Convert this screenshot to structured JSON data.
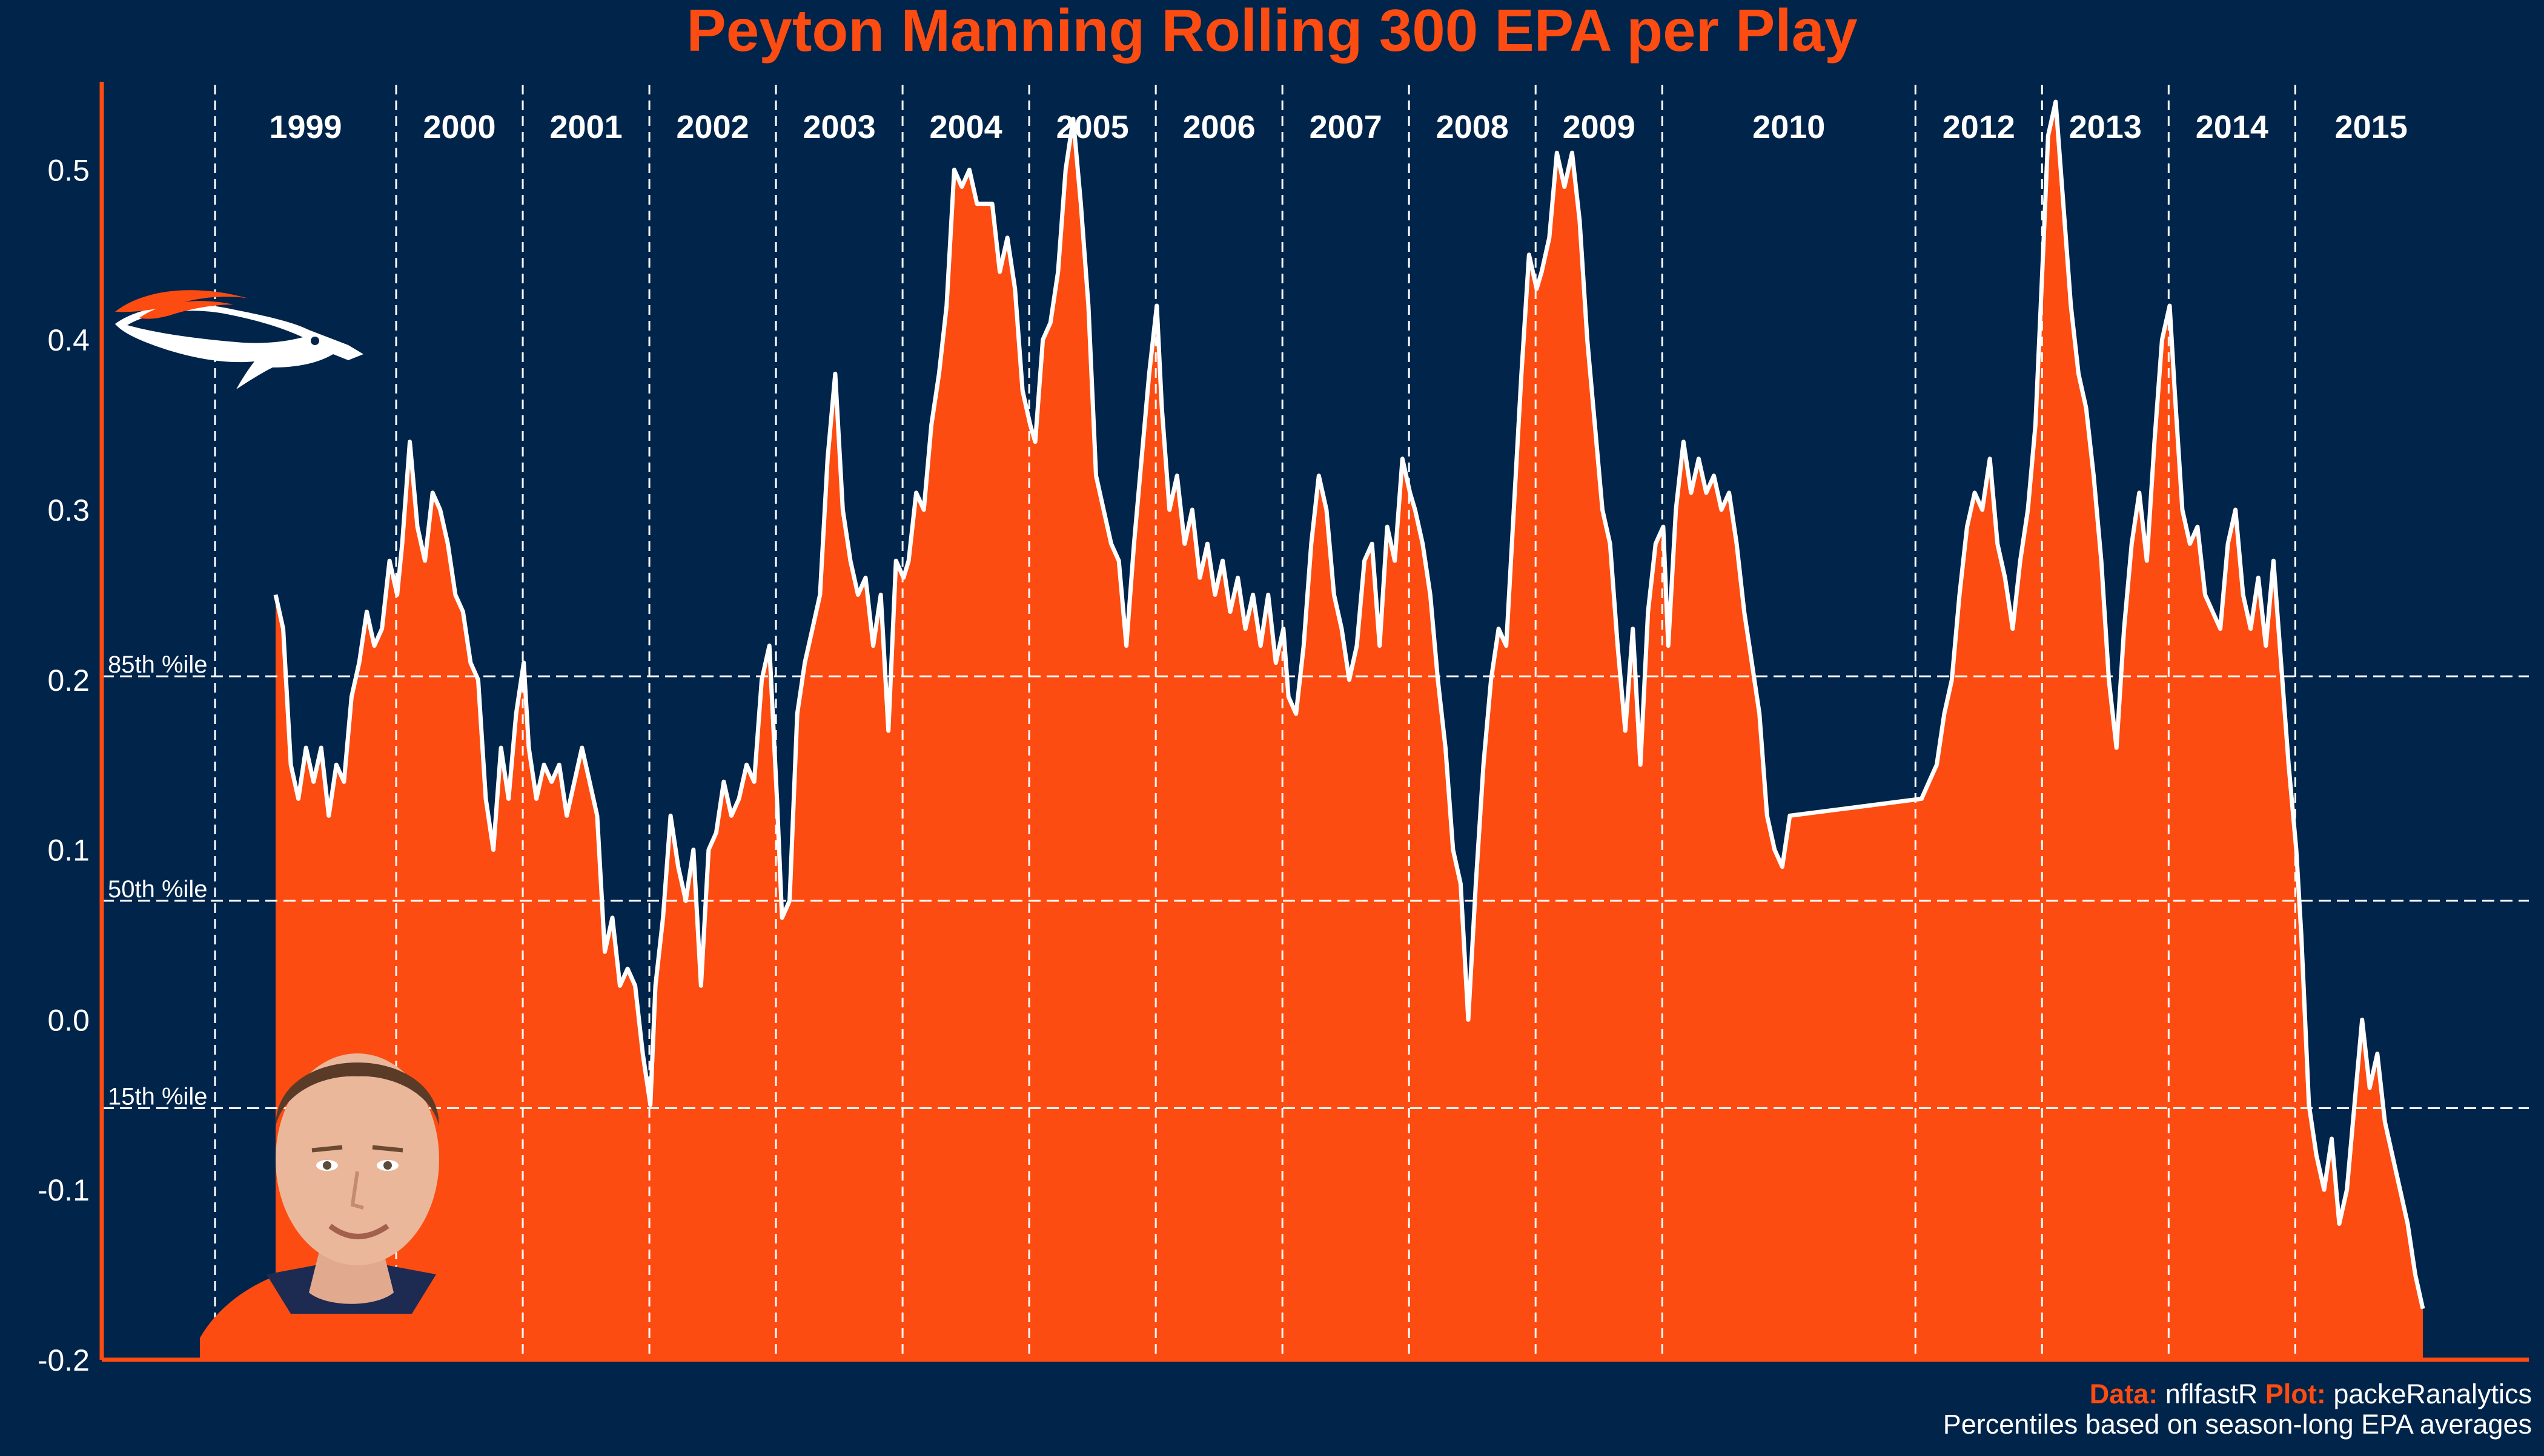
{
  "chart_data": {
    "type": "area",
    "title": "Peyton Manning Rolling 300 EPA per Play",
    "xlabel": "",
    "ylabel": "",
    "ylim": [
      -0.2,
      0.55
    ],
    "y_ticks": [
      "0.5",
      "0.4",
      "0.3",
      "0.2",
      "0.1",
      "0.0",
      "-0.1",
      "-0.2"
    ],
    "grid": false,
    "seasons": [
      "1999",
      "2000",
      "2001",
      "2002",
      "2003",
      "2004",
      "2005",
      "2006",
      "2007",
      "2008",
      "2009",
      "2010",
      "2012",
      "2013",
      "2014",
      "2015"
    ],
    "percentile_lines": [
      {
        "label": "85th %ile",
        "value": 0.202
      },
      {
        "label": "50th %ile",
        "value": 0.07
      },
      {
        "label": "15th %ile",
        "value": -0.052
      }
    ],
    "series": [
      {
        "points": [
          [
            1999.0,
            0.25
          ],
          [
            1999.06,
            0.23
          ],
          [
            1999.12,
            0.15
          ],
          [
            1999.18,
            0.13
          ],
          [
            1999.24,
            0.16
          ],
          [
            1999.3,
            0.14
          ],
          [
            1999.36,
            0.16
          ],
          [
            1999.42,
            0.12
          ],
          [
            1999.48,
            0.15
          ],
          [
            1999.54,
            0.14
          ],
          [
            1999.6,
            0.19
          ],
          [
            1999.66,
            0.21
          ],
          [
            1999.72,
            0.24
          ],
          [
            1999.78,
            0.22
          ],
          [
            1999.84,
            0.23
          ],
          [
            1999.9,
            0.27
          ],
          [
            1999.96,
            0.25
          ],
          [
            2000.0,
            0.28
          ],
          [
            2000.06,
            0.34
          ],
          [
            2000.12,
            0.29
          ],
          [
            2000.18,
            0.27
          ],
          [
            2000.24,
            0.31
          ],
          [
            2000.3,
            0.3
          ],
          [
            2000.36,
            0.28
          ],
          [
            2000.42,
            0.25
          ],
          [
            2000.48,
            0.24
          ],
          [
            2000.54,
            0.21
          ],
          [
            2000.6,
            0.2
          ],
          [
            2000.66,
            0.13
          ],
          [
            2000.72,
            0.1
          ],
          [
            2000.78,
            0.16
          ],
          [
            2000.84,
            0.13
          ],
          [
            2000.9,
            0.18
          ],
          [
            2000.96,
            0.21
          ],
          [
            2001.0,
            0.16
          ],
          [
            2001.06,
            0.13
          ],
          [
            2001.12,
            0.15
          ],
          [
            2001.18,
            0.14
          ],
          [
            2001.24,
            0.15
          ],
          [
            2001.3,
            0.12
          ],
          [
            2001.36,
            0.14
          ],
          [
            2001.42,
            0.16
          ],
          [
            2001.48,
            0.14
          ],
          [
            2001.54,
            0.12
          ],
          [
            2001.6,
            0.04
          ],
          [
            2001.66,
            0.06
          ],
          [
            2001.72,
            0.02
          ],
          [
            2001.78,
            0.03
          ],
          [
            2001.84,
            0.02
          ],
          [
            2001.9,
            -0.02
          ],
          [
            2001.96,
            -0.05
          ],
          [
            2002.0,
            0.02
          ],
          [
            2002.06,
            0.06
          ],
          [
            2002.12,
            0.12
          ],
          [
            2002.18,
            0.09
          ],
          [
            2002.24,
            0.07
          ],
          [
            2002.3,
            0.1
          ],
          [
            2002.36,
            0.02
          ],
          [
            2002.42,
            0.1
          ],
          [
            2002.48,
            0.11
          ],
          [
            2002.54,
            0.14
          ],
          [
            2002.6,
            0.12
          ],
          [
            2002.66,
            0.13
          ],
          [
            2002.72,
            0.15
          ],
          [
            2002.78,
            0.14
          ],
          [
            2002.84,
            0.2
          ],
          [
            2002.9,
            0.22
          ],
          [
            2002.96,
            0.13
          ],
          [
            2003.0,
            0.06
          ],
          [
            2003.06,
            0.07
          ],
          [
            2003.12,
            0.18
          ],
          [
            2003.18,
            0.21
          ],
          [
            2003.24,
            0.23
          ],
          [
            2003.3,
            0.25
          ],
          [
            2003.36,
            0.33
          ],
          [
            2003.42,
            0.38
          ],
          [
            2003.48,
            0.3
          ],
          [
            2003.54,
            0.27
          ],
          [
            2003.6,
            0.25
          ],
          [
            2003.66,
            0.26
          ],
          [
            2003.72,
            0.22
          ],
          [
            2003.78,
            0.25
          ],
          [
            2003.84,
            0.17
          ],
          [
            2003.9,
            0.27
          ],
          [
            2003.96,
            0.26
          ],
          [
            2004.0,
            0.27
          ],
          [
            2004.06,
            0.31
          ],
          [
            2004.12,
            0.3
          ],
          [
            2004.18,
            0.35
          ],
          [
            2004.24,
            0.38
          ],
          [
            2004.3,
            0.42
          ],
          [
            2004.36,
            0.5
          ],
          [
            2004.42,
            0.49
          ],
          [
            2004.48,
            0.5
          ],
          [
            2004.54,
            0.48
          ],
          [
            2004.6,
            0.48
          ],
          [
            2004.66,
            0.48
          ],
          [
            2004.72,
            0.44
          ],
          [
            2004.78,
            0.46
          ],
          [
            2004.84,
            0.43
          ],
          [
            2004.9,
            0.37
          ],
          [
            2004.96,
            0.35
          ],
          [
            2005.0,
            0.34
          ],
          [
            2005.06,
            0.4
          ],
          [
            2005.12,
            0.41
          ],
          [
            2005.18,
            0.44
          ],
          [
            2005.24,
            0.5
          ],
          [
            2005.3,
            0.53
          ],
          [
            2005.36,
            0.48
          ],
          [
            2005.42,
            0.42
          ],
          [
            2005.48,
            0.32
          ],
          [
            2005.54,
            0.3
          ],
          [
            2005.6,
            0.28
          ],
          [
            2005.66,
            0.27
          ],
          [
            2005.72,
            0.22
          ],
          [
            2005.78,
            0.28
          ],
          [
            2005.84,
            0.33
          ],
          [
            2005.9,
            0.38
          ],
          [
            2005.96,
            0.42
          ],
          [
            2006.0,
            0.36
          ],
          [
            2006.06,
            0.3
          ],
          [
            2006.12,
            0.32
          ],
          [
            2006.18,
            0.28
          ],
          [
            2006.24,
            0.3
          ],
          [
            2006.3,
            0.26
          ],
          [
            2006.36,
            0.28
          ],
          [
            2006.42,
            0.25
          ],
          [
            2006.48,
            0.27
          ],
          [
            2006.54,
            0.24
          ],
          [
            2006.6,
            0.26
          ],
          [
            2006.66,
            0.23
          ],
          [
            2006.72,
            0.25
          ],
          [
            2006.78,
            0.22
          ],
          [
            2006.84,
            0.25
          ],
          [
            2006.9,
            0.21
          ],
          [
            2006.96,
            0.23
          ],
          [
            2007.0,
            0.19
          ],
          [
            2007.06,
            0.18
          ],
          [
            2007.12,
            0.22
          ],
          [
            2007.18,
            0.28
          ],
          [
            2007.24,
            0.32
          ],
          [
            2007.3,
            0.3
          ],
          [
            2007.36,
            0.25
          ],
          [
            2007.42,
            0.23
          ],
          [
            2007.48,
            0.2
          ],
          [
            2007.54,
            0.22
          ],
          [
            2007.6,
            0.27
          ],
          [
            2007.66,
            0.28
          ],
          [
            2007.72,
            0.22
          ],
          [
            2007.78,
            0.29
          ],
          [
            2007.84,
            0.27
          ],
          [
            2007.9,
            0.33
          ],
          [
            2007.96,
            0.31
          ],
          [
            2008.0,
            0.3
          ],
          [
            2008.06,
            0.28
          ],
          [
            2008.12,
            0.25
          ],
          [
            2008.18,
            0.2
          ],
          [
            2008.24,
            0.16
          ],
          [
            2008.3,
            0.1
          ],
          [
            2008.36,
            0.08
          ],
          [
            2008.42,
            0.0
          ],
          [
            2008.48,
            0.08
          ],
          [
            2008.54,
            0.15
          ],
          [
            2008.6,
            0.2
          ],
          [
            2008.66,
            0.23
          ],
          [
            2008.72,
            0.22
          ],
          [
            2008.78,
            0.3
          ],
          [
            2008.84,
            0.38
          ],
          [
            2008.9,
            0.45
          ],
          [
            2008.96,
            0.43
          ],
          [
            2009.0,
            0.44
          ],
          [
            2009.06,
            0.46
          ],
          [
            2009.12,
            0.51
          ],
          [
            2009.18,
            0.49
          ],
          [
            2009.24,
            0.51
          ],
          [
            2009.3,
            0.47
          ],
          [
            2009.36,
            0.4
          ],
          [
            2009.42,
            0.35
          ],
          [
            2009.48,
            0.3
          ],
          [
            2009.54,
            0.28
          ],
          [
            2009.6,
            0.22
          ],
          [
            2009.66,
            0.17
          ],
          [
            2009.72,
            0.23
          ],
          [
            2009.78,
            0.15
          ],
          [
            2009.84,
            0.24
          ],
          [
            2009.9,
            0.28
          ],
          [
            2009.96,
            0.29
          ],
          [
            2010.0,
            0.22
          ],
          [
            2010.06,
            0.3
          ],
          [
            2010.12,
            0.34
          ],
          [
            2010.18,
            0.31
          ],
          [
            2010.24,
            0.33
          ],
          [
            2010.3,
            0.31
          ],
          [
            2010.36,
            0.32
          ],
          [
            2010.42,
            0.3
          ],
          [
            2010.48,
            0.31
          ],
          [
            2010.54,
            0.28
          ],
          [
            2010.6,
            0.24
          ],
          [
            2010.66,
            0.21
          ],
          [
            2010.72,
            0.18
          ],
          [
            2010.78,
            0.12
          ],
          [
            2010.84,
            0.1
          ],
          [
            2010.9,
            0.09
          ],
          [
            2010.96,
            0.12
          ],
          [
            2012.0,
            0.13
          ],
          [
            2012.06,
            0.14
          ],
          [
            2012.12,
            0.15
          ],
          [
            2012.18,
            0.18
          ],
          [
            2012.24,
            0.2
          ],
          [
            2012.3,
            0.25
          ],
          [
            2012.36,
            0.29
          ],
          [
            2012.42,
            0.31
          ],
          [
            2012.48,
            0.3
          ],
          [
            2012.54,
            0.33
          ],
          [
            2012.6,
            0.28
          ],
          [
            2012.66,
            0.26
          ],
          [
            2012.72,
            0.23
          ],
          [
            2012.78,
            0.27
          ],
          [
            2012.84,
            0.3
          ],
          [
            2012.9,
            0.35
          ],
          [
            2012.96,
            0.45
          ],
          [
            2013.0,
            0.52
          ],
          [
            2013.06,
            0.54
          ],
          [
            2013.12,
            0.48
          ],
          [
            2013.18,
            0.42
          ],
          [
            2013.24,
            0.38
          ],
          [
            2013.3,
            0.36
          ],
          [
            2013.36,
            0.32
          ],
          [
            2013.42,
            0.27
          ],
          [
            2013.48,
            0.2
          ],
          [
            2013.54,
            0.16
          ],
          [
            2013.6,
            0.23
          ],
          [
            2013.66,
            0.28
          ],
          [
            2013.72,
            0.31
          ],
          [
            2013.78,
            0.27
          ],
          [
            2013.84,
            0.34
          ],
          [
            2013.9,
            0.4
          ],
          [
            2013.96,
            0.42
          ],
          [
            2014.0,
            0.37
          ],
          [
            2014.06,
            0.3
          ],
          [
            2014.12,
            0.28
          ],
          [
            2014.18,
            0.29
          ],
          [
            2014.24,
            0.25
          ],
          [
            2014.3,
            0.24
          ],
          [
            2014.36,
            0.23
          ],
          [
            2014.42,
            0.28
          ],
          [
            2014.48,
            0.3
          ],
          [
            2014.54,
            0.25
          ],
          [
            2014.6,
            0.23
          ],
          [
            2014.66,
            0.26
          ],
          [
            2014.72,
            0.22
          ],
          [
            2014.78,
            0.27
          ],
          [
            2014.84,
            0.21
          ],
          [
            2014.9,
            0.15
          ],
          [
            2014.96,
            0.1
          ],
          [
            2015.0,
            0.05
          ],
          [
            2015.06,
            -0.05
          ],
          [
            2015.12,
            -0.08
          ],
          [
            2015.18,
            -0.1
          ],
          [
            2015.24,
            -0.07
          ],
          [
            2015.3,
            -0.12
          ],
          [
            2015.36,
            -0.1
          ],
          [
            2015.42,
            -0.05
          ],
          [
            2015.48,
            0.0
          ],
          [
            2015.54,
            -0.04
          ],
          [
            2015.6,
            -0.02
          ],
          [
            2015.66,
            -0.06
          ],
          [
            2015.72,
            -0.08
          ],
          [
            2015.78,
            -0.1
          ],
          [
            2015.84,
            -0.12
          ],
          [
            2015.9,
            -0.15
          ],
          [
            2015.96,
            -0.17
          ]
        ]
      }
    ]
  },
  "caption": {
    "data_label": "Data:",
    "data_value": " nflfastR ",
    "plot_label": "Plot:",
    "plot_value": " packeRanalytics",
    "note": "Percentiles based on season-long EPA averages"
  },
  "colors": {
    "background": "#00244a",
    "fill": "#fc4c12",
    "line": "#ffffff",
    "title": "#fc4c12",
    "axis": "#fc4c12",
    "text": "#ffffff"
  },
  "images": {
    "team_logo": "broncos-logo",
    "player_photo": "player-headshot"
  }
}
